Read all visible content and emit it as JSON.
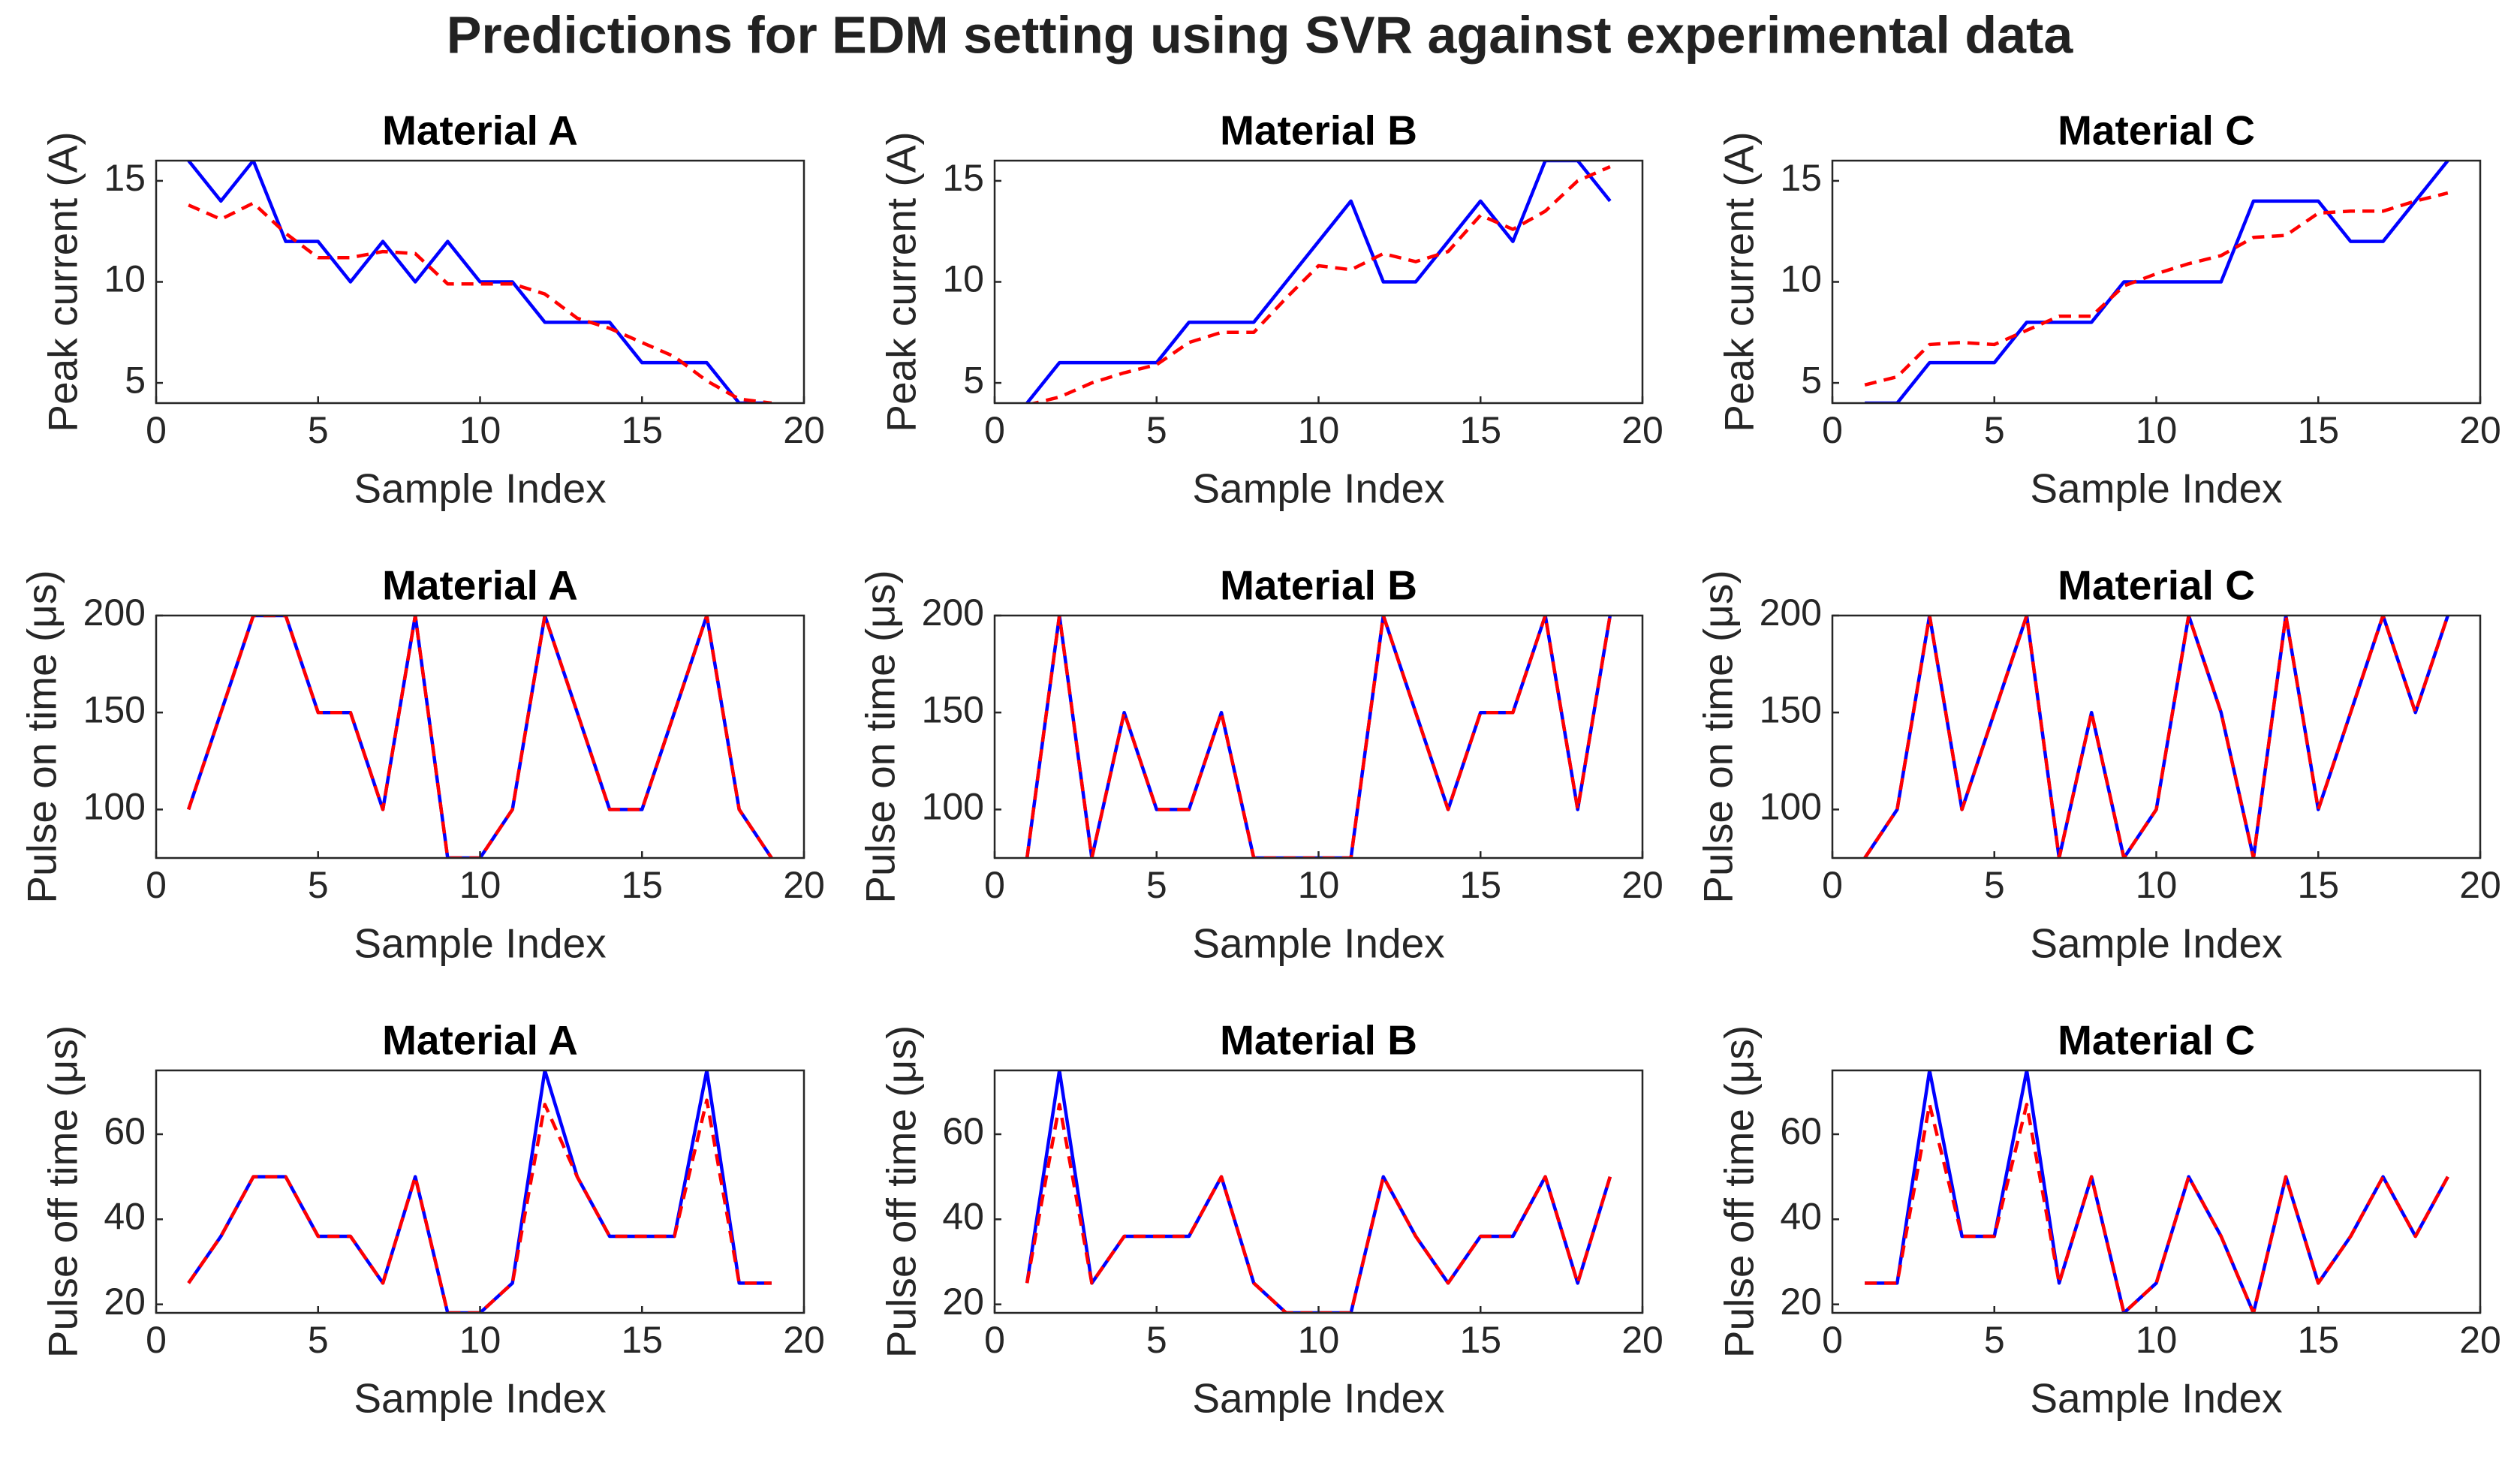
{
  "title": "Predictions for EDM setting using SVR against experimental data",
  "chart_data": [
    {
      "type": "line",
      "title": "Material A",
      "xlabel": "Sample Index",
      "ylabel": "Peak current (A)",
      "x": [
        1,
        2,
        3,
        4,
        5,
        6,
        7,
        8,
        9,
        10,
        11,
        12,
        13,
        14,
        15,
        16,
        17,
        18,
        19
      ],
      "xlim": [
        0,
        20
      ],
      "xticks": [
        0,
        5,
        10,
        15,
        20
      ],
      "ylim": [
        4,
        16
      ],
      "yticks": [
        5,
        10,
        15
      ],
      "series": [
        {
          "color": "#0000ff",
          "line_style": "solid",
          "values": [
            16,
            14,
            16,
            12,
            12,
            10,
            12,
            10,
            12,
            10,
            10,
            8,
            8,
            8,
            6,
            6,
            6,
            4,
            4
          ]
        },
        {
          "color": "#ff0000",
          "line_style": "dashed",
          "values": [
            13.8,
            13.1,
            13.9,
            12.4,
            11.2,
            11.2,
            11.5,
            11.4,
            9.9,
            9.9,
            9.9,
            9.4,
            8.2,
            7.7,
            7.0,
            6.3,
            5.1,
            4.2,
            4.0
          ]
        }
      ]
    },
    {
      "type": "line",
      "title": "Material B",
      "xlabel": "Sample Index",
      "ylabel": "Peak current (A)",
      "x": [
        1,
        2,
        3,
        4,
        5,
        6,
        7,
        8,
        9,
        10,
        11,
        12,
        13,
        14,
        15,
        16,
        17,
        18,
        19
      ],
      "xlim": [
        0,
        20
      ],
      "xticks": [
        0,
        5,
        10,
        15,
        20
      ],
      "ylim": [
        4,
        16
      ],
      "yticks": [
        5,
        10,
        15
      ],
      "series": [
        {
          "color": "#0000ff",
          "line_style": "solid",
          "values": [
            4,
            6,
            6,
            6,
            6,
            8,
            8,
            8,
            10,
            12,
            14,
            10,
            10,
            12,
            14,
            12,
            16,
            16,
            14
          ]
        },
        {
          "color": "#ff0000",
          "line_style": "dashed",
          "values": [
            3.9,
            4.3,
            5.0,
            5.5,
            5.9,
            7.0,
            7.5,
            7.5,
            9.2,
            10.8,
            10.6,
            11.4,
            11.0,
            11.5,
            13.3,
            12.6,
            13.5,
            15.0,
            15.7
          ]
        }
      ]
    },
    {
      "type": "line",
      "title": "Material C",
      "xlabel": "Sample Index",
      "ylabel": "Peak current (A)",
      "x": [
        1,
        2,
        3,
        4,
        5,
        6,
        7,
        8,
        9,
        10,
        11,
        12,
        13,
        14,
        15,
        16,
        17,
        18,
        19
      ],
      "xlim": [
        0,
        20
      ],
      "xticks": [
        0,
        5,
        10,
        15,
        20
      ],
      "ylim": [
        4,
        16
      ],
      "yticks": [
        5,
        10,
        15
      ],
      "series": [
        {
          "color": "#0000ff",
          "line_style": "solid",
          "values": [
            4,
            4,
            6,
            6,
            6,
            8,
            8,
            8,
            10,
            10,
            10,
            10,
            14,
            14,
            14,
            12,
            12,
            14,
            16
          ]
        },
        {
          "color": "#ff0000",
          "line_style": "dashed",
          "values": [
            4.9,
            5.3,
            6.9,
            7.0,
            6.9,
            7.6,
            8.3,
            8.3,
            9.8,
            10.4,
            10.9,
            11.3,
            12.2,
            12.3,
            13.4,
            13.5,
            13.5,
            14.0,
            14.4
          ]
        }
      ]
    },
    {
      "type": "line",
      "title": "Material A",
      "xlabel": "Sample Index",
      "ylabel": "Pulse on time (μs)",
      "x": [
        1,
        2,
        3,
        4,
        5,
        6,
        7,
        8,
        9,
        10,
        11,
        12,
        13,
        14,
        15,
        16,
        17,
        18,
        19
      ],
      "xlim": [
        0,
        20
      ],
      "xticks": [
        0,
        5,
        10,
        15,
        20
      ],
      "ylim": [
        75,
        200
      ],
      "yticks": [
        100,
        150,
        200
      ],
      "series": [
        {
          "color": "#0000ff",
          "line_style": "solid",
          "values": [
            100,
            150,
            200,
            200,
            150,
            150,
            100,
            200,
            75,
            75,
            100,
            200,
            150,
            100,
            100,
            150,
            200,
            100,
            75
          ]
        },
        {
          "color": "#ff0000",
          "line_style": "dashed",
          "values": [
            100,
            150,
            200,
            200,
            150,
            150,
            100,
            200,
            75,
            75,
            100,
            200,
            150,
            100,
            100,
            150,
            200,
            100,
            75
          ]
        }
      ]
    },
    {
      "type": "line",
      "title": "Material B",
      "xlabel": "Sample Index",
      "ylabel": "Pulse on time (μs)",
      "x": [
        1,
        2,
        3,
        4,
        5,
        6,
        7,
        8,
        9,
        10,
        11,
        12,
        13,
        14,
        15,
        16,
        17,
        18,
        19
      ],
      "xlim": [
        0,
        20
      ],
      "xticks": [
        0,
        5,
        10,
        15,
        20
      ],
      "ylim": [
        75,
        200
      ],
      "yticks": [
        100,
        150,
        200
      ],
      "series": [
        {
          "color": "#0000ff",
          "line_style": "solid",
          "values": [
            75,
            200,
            75,
            150,
            100,
            100,
            150,
            75,
            75,
            75,
            75,
            200,
            150,
            100,
            150,
            150,
            200,
            100,
            200
          ]
        },
        {
          "color": "#ff0000",
          "line_style": "dashed",
          "values": [
            75,
            200,
            75,
            150,
            100,
            100,
            150,
            75,
            75,
            75,
            75,
            200,
            150,
            100,
            150,
            150,
            200,
            100,
            200
          ]
        }
      ]
    },
    {
      "type": "line",
      "title": "Material C",
      "xlabel": "Sample Index",
      "ylabel": "Pulse on time (μs)",
      "x": [
        1,
        2,
        3,
        4,
        5,
        6,
        7,
        8,
        9,
        10,
        11,
        12,
        13,
        14,
        15,
        16,
        17,
        18,
        19
      ],
      "xlim": [
        0,
        20
      ],
      "xticks": [
        0,
        5,
        10,
        15,
        20
      ],
      "ylim": [
        75,
        200
      ],
      "yticks": [
        100,
        150,
        200
      ],
      "series": [
        {
          "color": "#0000ff",
          "line_style": "solid",
          "values": [
            75,
            100,
            200,
            100,
            150,
            200,
            75,
            150,
            75,
            100,
            200,
            150,
            75,
            200,
            100,
            150,
            200,
            150,
            200
          ]
        },
        {
          "color": "#ff0000",
          "line_style": "dashed",
          "values": [
            75,
            100,
            200,
            100,
            150,
            200,
            75,
            150,
            75,
            100,
            200,
            150,
            75,
            200,
            100,
            150,
            200,
            150,
            200
          ]
        }
      ]
    },
    {
      "type": "line",
      "title": "Material A",
      "xlabel": "Sample Index",
      "ylabel": "Pulse off time (μs)",
      "x": [
        1,
        2,
        3,
        4,
        5,
        6,
        7,
        8,
        9,
        10,
        11,
        12,
        13,
        14,
        15,
        16,
        17,
        18,
        19
      ],
      "xlim": [
        0,
        20
      ],
      "xticks": [
        0,
        5,
        10,
        15,
        20
      ],
      "ylim": [
        18,
        75
      ],
      "yticks": [
        20,
        40,
        60
      ],
      "series": [
        {
          "color": "#0000ff",
          "line_style": "solid",
          "values": [
            25,
            36,
            50,
            50,
            36,
            36,
            25,
            50,
            18,
            18,
            25,
            75,
            50,
            36,
            36,
            36,
            75,
            25,
            25
          ]
        },
        {
          "color": "#ff0000",
          "line_style": "dashed",
          "values": [
            25,
            36,
            50,
            50,
            36,
            36,
            25,
            50,
            18,
            18,
            25,
            67,
            50,
            36,
            36,
            36,
            68,
            25,
            25
          ]
        }
      ]
    },
    {
      "type": "line",
      "title": "Material B",
      "xlabel": "Sample Index",
      "ylabel": "Pulse off time (μs)",
      "x": [
        1,
        2,
        3,
        4,
        5,
        6,
        7,
        8,
        9,
        10,
        11,
        12,
        13,
        14,
        15,
        16,
        17,
        18,
        19
      ],
      "xlim": [
        0,
        20
      ],
      "xticks": [
        0,
        5,
        10,
        15,
        20
      ],
      "ylim": [
        18,
        75
      ],
      "yticks": [
        20,
        40,
        60
      ],
      "series": [
        {
          "color": "#0000ff",
          "line_style": "solid",
          "values": [
            25,
            75,
            25,
            36,
            36,
            36,
            50,
            25,
            18,
            18,
            18,
            50,
            36,
            25,
            36,
            36,
            50,
            25,
            50
          ]
        },
        {
          "color": "#ff0000",
          "line_style": "dashed",
          "values": [
            25,
            67,
            25,
            36,
            36,
            36,
            50,
            25,
            18,
            18,
            18,
            50,
            36,
            25,
            36,
            36,
            50,
            25,
            50
          ]
        }
      ]
    },
    {
      "type": "line",
      "title": "Material C",
      "xlabel": "Sample Index",
      "ylabel": "Pulse off time (μs)",
      "x": [
        1,
        2,
        3,
        4,
        5,
        6,
        7,
        8,
        9,
        10,
        11,
        12,
        13,
        14,
        15,
        16,
        17,
        18,
        19
      ],
      "xlim": [
        0,
        20
      ],
      "xticks": [
        0,
        5,
        10,
        15,
        20
      ],
      "ylim": [
        18,
        75
      ],
      "yticks": [
        20,
        40,
        60
      ],
      "series": [
        {
          "color": "#0000ff",
          "line_style": "solid",
          "values": [
            25,
            25,
            75,
            36,
            36,
            75,
            25,
            50,
            18,
            25,
            50,
            36,
            18,
            50,
            25,
            36,
            50,
            36,
            50
          ]
        },
        {
          "color": "#ff0000",
          "line_style": "dashed",
          "values": [
            25,
            25,
            67,
            36,
            36,
            67,
            25,
            50,
            18,
            25,
            50,
            36,
            18,
            50,
            25,
            36,
            50,
            36,
            50
          ]
        }
      ]
    }
  ]
}
